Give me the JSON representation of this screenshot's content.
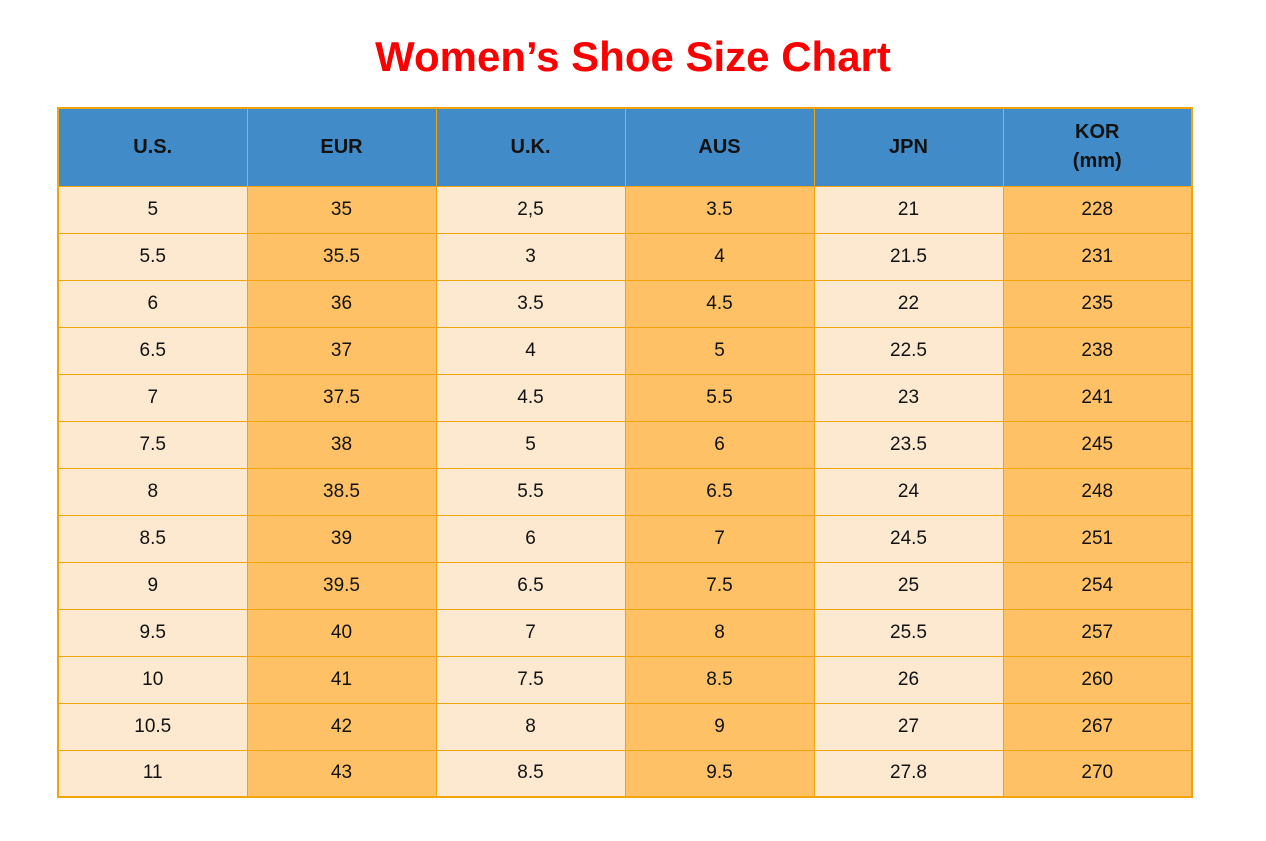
{
  "title": "Women’s Shoe Size Chart",
  "colors": {
    "title_red": "#fa0000",
    "header_blue": "#418cc8",
    "cell_cream": "#fce9d0",
    "cell_orange": "#ffc166",
    "border_gold": "#f2a50a",
    "text": "#121212"
  },
  "chart_data": {
    "type": "table",
    "title": "Women’s Shoe Size Chart",
    "columns": [
      "U.S.",
      "EUR",
      "U.K.",
      "AUS",
      "JPN",
      "KOR\n(mm)"
    ],
    "rows": [
      [
        "5",
        "35",
        "2,5",
        "3.5",
        "21",
        "228"
      ],
      [
        "5.5",
        "35.5",
        "3",
        "4",
        "21.5",
        "231"
      ],
      [
        "6",
        "36",
        "3.5",
        "4.5",
        "22",
        "235"
      ],
      [
        "6.5",
        "37",
        "4",
        "5",
        "22.5",
        "238"
      ],
      [
        "7",
        "37.5",
        "4.5",
        "5.5",
        "23",
        "241"
      ],
      [
        "7.5",
        "38",
        "5",
        "6",
        "23.5",
        "245"
      ],
      [
        "8",
        "38.5",
        "5.5",
        "6.5",
        "24",
        "248"
      ],
      [
        "8.5",
        "39",
        "6",
        "7",
        "24.5",
        "251"
      ],
      [
        "9",
        "39.5",
        "6.5",
        "7.5",
        "25",
        "254"
      ],
      [
        "9.5",
        "40",
        "7",
        "8",
        "25.5",
        "257"
      ],
      [
        "10",
        "41",
        "7.5",
        "8.5",
        "26",
        "260"
      ],
      [
        "10.5",
        "42",
        "8",
        "9",
        "27",
        "267"
      ],
      [
        "11",
        "43",
        "8.5",
        "9.5",
        "27.8",
        "270"
      ]
    ],
    "layout": {
      "column_fill_pattern": [
        "cream",
        "orange",
        "cream",
        "orange",
        "cream",
        "orange"
      ],
      "header_style": "blue-bold",
      "grid": "gold-borders"
    }
  }
}
